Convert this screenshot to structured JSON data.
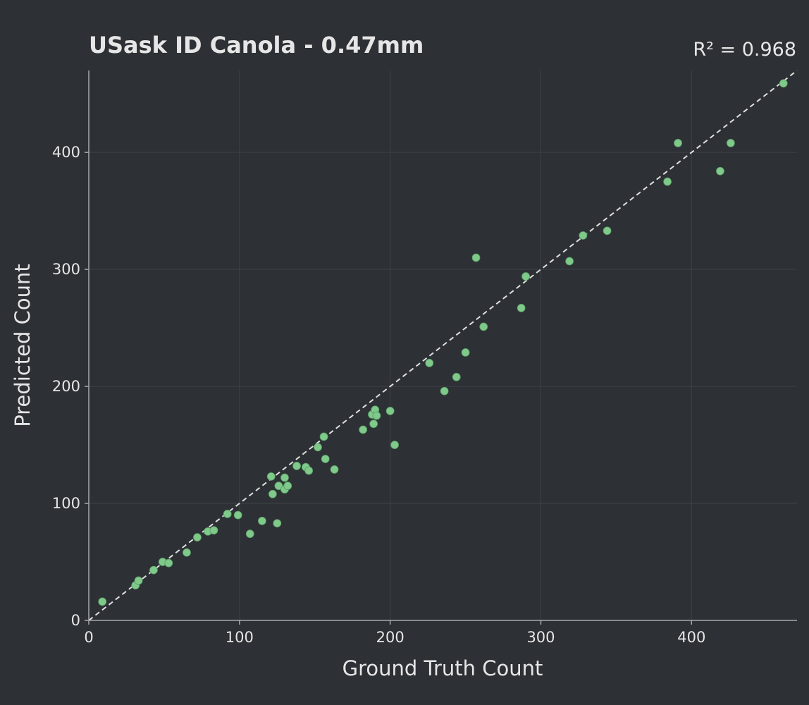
{
  "chart_data": {
    "type": "scatter",
    "title": "USask ID Canola - 0.47mm",
    "annotation": "R² = 0.968",
    "xlabel": "Ground Truth Count",
    "ylabel": "Predicted Count",
    "xlim": [
      0,
      470
    ],
    "ylim": [
      0,
      470
    ],
    "xticks": [
      0,
      100,
      200,
      300,
      400
    ],
    "yticks": [
      0,
      100,
      200,
      300,
      400
    ],
    "grid": true,
    "reference_line": "y = x (dashed)",
    "colors": {
      "background": "#2d3034",
      "points": "#7fc98b",
      "text": "#e6e6e6",
      "grid": "#3e4247",
      "axis": "#a7a9ab",
      "reference_line": "#e0e0e0"
    },
    "series": [
      {
        "points": [
          [
            9,
            16
          ],
          [
            31,
            30
          ],
          [
            33,
            34
          ],
          [
            43,
            43
          ],
          [
            49,
            50
          ],
          [
            53,
            49
          ],
          [
            65,
            58
          ],
          [
            72,
            71
          ],
          [
            79,
            76
          ],
          [
            83,
            77
          ],
          [
            92,
            91
          ],
          [
            99,
            90
          ],
          [
            107,
            74
          ],
          [
            115,
            85
          ],
          [
            121,
            123
          ],
          [
            122,
            108
          ],
          [
            125,
            83
          ],
          [
            126,
            115
          ],
          [
            130,
            122
          ],
          [
            130,
            112
          ],
          [
            132,
            115
          ],
          [
            138,
            132
          ],
          [
            144,
            131
          ],
          [
            146,
            128
          ],
          [
            152,
            148
          ],
          [
            156,
            157
          ],
          [
            157,
            138
          ],
          [
            163,
            129
          ],
          [
            182,
            163
          ],
          [
            188,
            176
          ],
          [
            189,
            168
          ],
          [
            190,
            180
          ],
          [
            191,
            175
          ],
          [
            200,
            179
          ],
          [
            203,
            150
          ],
          [
            226,
            220
          ],
          [
            236,
            196
          ],
          [
            244,
            208
          ],
          [
            250,
            229
          ],
          [
            257,
            310
          ],
          [
            262,
            251
          ],
          [
            287,
            267
          ],
          [
            290,
            294
          ],
          [
            319,
            307
          ],
          [
            328,
            329
          ],
          [
            344,
            333
          ],
          [
            384,
            375
          ],
          [
            391,
            408
          ],
          [
            419,
            384
          ],
          [
            426,
            408
          ],
          [
            461,
            459
          ]
        ]
      }
    ]
  }
}
